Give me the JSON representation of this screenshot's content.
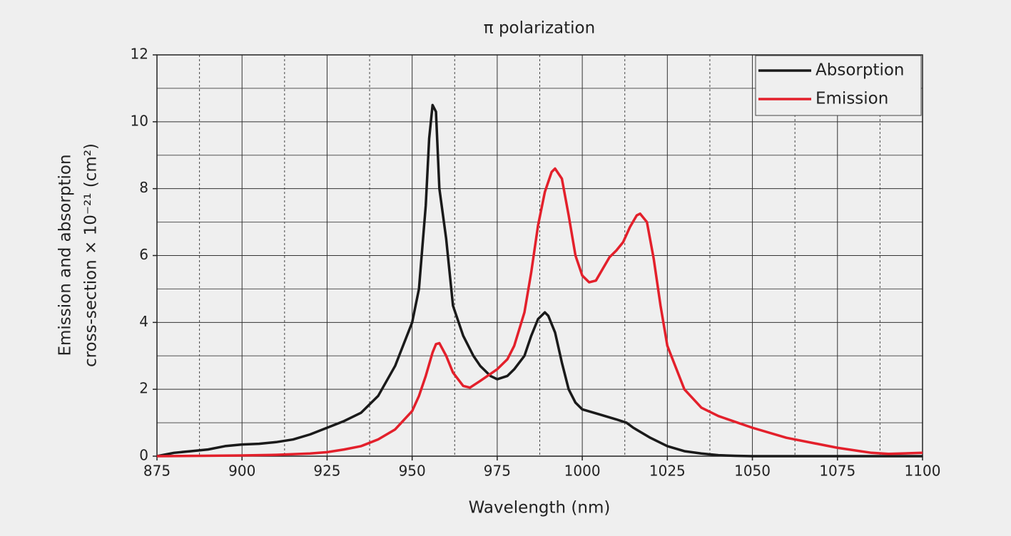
{
  "chart_data": {
    "type": "line",
    "title": "π polarization",
    "x_label": "Wavelength (nm)",
    "y_label": [
      "Emission and absorption",
      "cross-section × 10⁻²¹ (cm²)"
    ],
    "xlim": [
      875,
      1100
    ],
    "xticks": [
      875,
      900,
      925,
      950,
      975,
      1000,
      1025,
      1050,
      1075,
      1100
    ],
    "ylim": [
      0,
      12
    ],
    "yticks": [
      0,
      2,
      4,
      6,
      8,
      10,
      12
    ],
    "grid": true,
    "minor_grid": true,
    "legend": "upper right",
    "series": [
      {
        "name": "Absorption",
        "color": "#1a1a1a",
        "x": [
          875,
          880,
          885,
          890,
          895,
          900,
          905,
          910,
          915,
          920,
          925,
          930,
          935,
          940,
          945,
          950,
          952,
          954,
          955,
          956,
          957,
          958,
          960,
          962,
          965,
          968,
          970,
          973,
          975,
          978,
          980,
          983,
          985,
          987,
          989,
          990,
          992,
          994,
          996,
          998,
          1000,
          1005,
          1010,
          1013,
          1015,
          1020,
          1025,
          1030,
          1035,
          1040,
          1045,
          1050,
          1060,
          1075,
          1100
        ],
        "values": [
          0,
          0.1,
          0.15,
          0.2,
          0.3,
          0.35,
          0.37,
          0.42,
          0.5,
          0.65,
          0.85,
          1.05,
          1.3,
          1.8,
          2.7,
          4.0,
          5.0,
          7.5,
          9.5,
          10.5,
          10.3,
          8.0,
          6.5,
          4.5,
          3.6,
          3.0,
          2.7,
          2.4,
          2.3,
          2.4,
          2.6,
          3.0,
          3.6,
          4.1,
          4.3,
          4.2,
          3.7,
          2.8,
          2.0,
          1.6,
          1.4,
          1.25,
          1.1,
          1.0,
          0.85,
          0.55,
          0.3,
          0.15,
          0.08,
          0.03,
          0.01,
          0,
          0,
          0,
          0
        ]
      },
      {
        "name": "Emission",
        "color": "#e3202b",
        "x": [
          875,
          900,
          910,
          920,
          925,
          930,
          935,
          940,
          945,
          950,
          952,
          954,
          956,
          957,
          958,
          960,
          962,
          965,
          967,
          970,
          975,
          978,
          980,
          983,
          985,
          987,
          989,
          991,
          992,
          994,
          996,
          998,
          1000,
          1002,
          1004,
          1006,
          1008,
          1010,
          1012,
          1014,
          1016,
          1017,
          1019,
          1021,
          1023,
          1025,
          1030,
          1035,
          1040,
          1050,
          1060,
          1075,
          1085,
          1090,
          1100
        ],
        "values": [
          0,
          0.02,
          0.04,
          0.08,
          0.12,
          0.2,
          0.3,
          0.5,
          0.8,
          1.35,
          1.8,
          2.4,
          3.1,
          3.35,
          3.38,
          3.0,
          2.5,
          2.1,
          2.05,
          2.25,
          2.6,
          2.9,
          3.3,
          4.3,
          5.5,
          6.9,
          7.9,
          8.5,
          8.6,
          8.3,
          7.2,
          6.0,
          5.4,
          5.2,
          5.25,
          5.6,
          5.95,
          6.15,
          6.4,
          6.85,
          7.2,
          7.25,
          7.0,
          5.9,
          4.5,
          3.3,
          2.0,
          1.45,
          1.2,
          0.85,
          0.55,
          0.25,
          0.1,
          0.07,
          0.1
        ]
      }
    ]
  }
}
